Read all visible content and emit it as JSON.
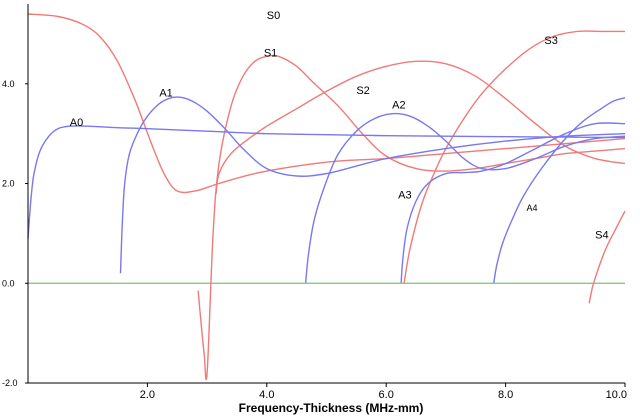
{
  "chart_data": {
    "type": "line",
    "title": "",
    "xlabel": "Frequency-Thickness (MHz-mm)",
    "ylabel": "",
    "xlim": [
      0,
      10
    ],
    "ylim": [
      -2,
      5.6
    ],
    "xticks": [
      {
        "value": 2,
        "label": "2.0"
      },
      {
        "value": 4,
        "label": "4.0"
      },
      {
        "value": 6,
        "label": "6.0"
      },
      {
        "value": 8,
        "label": "8.0"
      },
      {
        "value": 10,
        "label": "10.0"
      }
    ],
    "yticks": [
      {
        "value": 4,
        "label": "4.0"
      },
      {
        "value": 2,
        "label": "2.0"
      },
      {
        "value": 0,
        "label": "0.0"
      },
      {
        "value": -2,
        "label": "-2.0"
      }
    ],
    "colors": {
      "symmetric": "#f07a78",
      "antisymmetric": "#7878f0",
      "zero_line": "#7cc27c",
      "axis": "#000000"
    },
    "series": [
      {
        "name": "S0",
        "family": "symmetric",
        "label_at": [
          4.0,
          5.3
        ],
        "x": [
          0,
          0.5,
          0.9,
          1.2,
          1.5,
          1.8,
          2.1,
          2.3,
          2.5,
          2.8,
          3.2,
          3.8,
          4.5,
          5.2,
          6.0,
          7.0,
          8.0,
          9.0,
          10.0
        ],
        "y": [
          5.4,
          5.35,
          5.2,
          4.95,
          4.45,
          3.65,
          2.7,
          2.15,
          1.85,
          1.85,
          2.0,
          2.2,
          2.35,
          2.45,
          2.5,
          2.6,
          2.7,
          2.8,
          2.9
        ]
      },
      {
        "name": "S1",
        "family": "symmetric",
        "label_at": [
          3.95,
          4.55
        ],
        "x": [
          2.85,
          2.9,
          2.95,
          3.0,
          3.1,
          3.2,
          3.4,
          3.6,
          3.8,
          4.0,
          4.2,
          4.5,
          4.8,
          5.2,
          5.6,
          6.0,
          6.5,
          7.0,
          7.5,
          8.0,
          8.5,
          9.0,
          9.5,
          10.0
        ],
        "y": [
          -0.15,
          -0.8,
          -1.4,
          -1.8,
          1.0,
          2.4,
          3.55,
          4.15,
          4.45,
          4.55,
          4.55,
          4.35,
          4.0,
          3.55,
          3.0,
          2.55,
          2.3,
          2.25,
          2.3,
          2.4,
          2.5,
          2.6,
          2.65,
          2.7
        ]
      },
      {
        "name": "S2",
        "family": "symmetric",
        "label_at": [
          5.5,
          3.8
        ],
        "x": [
          3.15,
          3.2,
          3.4,
          3.7,
          4.0,
          4.5,
          5.0,
          5.5,
          6.0,
          6.5,
          7.0,
          7.5,
          8.0,
          8.5,
          9.0,
          9.5,
          10.0
        ],
        "y": [
          1.8,
          2.2,
          2.6,
          2.9,
          3.15,
          3.5,
          3.85,
          4.15,
          4.35,
          4.45,
          4.4,
          4.15,
          3.7,
          3.2,
          2.75,
          2.5,
          2.4
        ]
      },
      {
        "name": "S3",
        "family": "symmetric",
        "label_at": [
          8.65,
          4.8
        ],
        "x": [
          6.3,
          6.4,
          6.6,
          6.8,
          7.0,
          7.3,
          7.6,
          8.0,
          8.4,
          8.8,
          9.2,
          9.6,
          10.0
        ],
        "y": [
          0.0,
          0.7,
          1.6,
          2.2,
          2.7,
          3.3,
          3.8,
          4.3,
          4.7,
          4.95,
          5.05,
          5.05,
          5.05
        ]
      },
      {
        "name": "S4",
        "family": "symmetric",
        "label_at": [
          9.5,
          0.9
        ],
        "x": [
          9.4,
          9.45,
          9.5,
          9.6,
          9.7,
          9.85,
          10.0
        ],
        "y": [
          -0.4,
          -0.1,
          0.1,
          0.45,
          0.75,
          1.1,
          1.45
        ]
      },
      {
        "name": "A0",
        "family": "antisymmetric",
        "label_at": [
          0.7,
          3.15
        ],
        "x": [
          0,
          0.05,
          0.1,
          0.2,
          0.35,
          0.5,
          0.7,
          1.0,
          1.5,
          2.0,
          3.0,
          4.0,
          5.0,
          6.0,
          7.0,
          8.0,
          9.0,
          10.0
        ],
        "y": [
          0.9,
          1.7,
          2.2,
          2.65,
          2.95,
          3.1,
          3.15,
          3.15,
          3.12,
          3.1,
          3.05,
          3.0,
          2.98,
          2.96,
          2.95,
          2.94,
          2.93,
          2.92
        ]
      },
      {
        "name": "A1",
        "family": "antisymmetric",
        "label_at": [
          2.2,
          3.75
        ],
        "x": [
          1.55,
          1.58,
          1.62,
          1.7,
          1.85,
          2.0,
          2.2,
          2.4,
          2.6,
          2.8,
          3.0,
          3.3,
          3.6,
          4.0,
          4.5,
          5.0,
          5.5,
          6.0,
          7.0,
          8.0,
          9.0,
          10.0
        ],
        "y": [
          0.2,
          1.2,
          2.0,
          2.6,
          3.05,
          3.35,
          3.6,
          3.72,
          3.72,
          3.62,
          3.45,
          3.1,
          2.7,
          2.3,
          2.15,
          2.2,
          2.35,
          2.5,
          2.7,
          2.85,
          2.95,
          3.0
        ]
      },
      {
        "name": "A2",
        "family": "antisymmetric",
        "label_at": [
          6.1,
          3.5
        ],
        "x": [
          4.65,
          4.7,
          4.8,
          5.0,
          5.2,
          5.5,
          5.8,
          6.1,
          6.4,
          6.7,
          7.0,
          7.3,
          7.6,
          8.0,
          8.5,
          9.0,
          9.5,
          10.0
        ],
        "y": [
          0.0,
          0.6,
          1.3,
          2.05,
          2.6,
          3.05,
          3.3,
          3.4,
          3.35,
          3.15,
          2.85,
          2.5,
          2.3,
          2.3,
          2.5,
          2.75,
          2.9,
          2.95
        ]
      },
      {
        "name": "A3",
        "family": "antisymmetric",
        "label_at": [
          6.2,
          1.7
        ],
        "x": [
          6.25,
          6.28,
          6.35,
          6.5,
          6.7,
          7.0,
          7.3,
          7.6,
          8.0,
          8.5,
          9.0,
          9.5,
          10.0
        ],
        "y": [
          0.0,
          0.5,
          1.1,
          1.65,
          2.0,
          2.2,
          2.22,
          2.25,
          2.4,
          2.7,
          3.0,
          3.2,
          3.2
        ]
      },
      {
        "name": "A4",
        "family": "antisymmetric",
        "label_at": [
          8.35,
          1.45
        ],
        "x": [
          7.8,
          7.85,
          7.95,
          8.1,
          8.3,
          8.6,
          9.0,
          9.3,
          9.6,
          9.8,
          10.0
        ],
        "y": [
          0.0,
          0.35,
          0.8,
          1.25,
          1.75,
          2.3,
          2.9,
          3.25,
          3.5,
          3.65,
          3.72
        ]
      }
    ]
  }
}
